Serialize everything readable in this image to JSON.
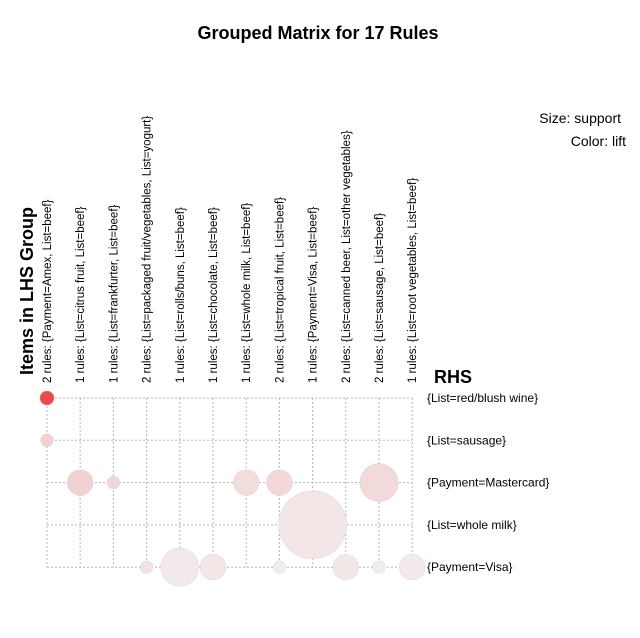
{
  "chart_data": {
    "type": "scatter",
    "title": "Grouped Matrix for 17 Rules",
    "legend": {
      "size_label": "Size: support",
      "color_label": "Color: lift"
    },
    "xlabel": "Items in LHS Group",
    "ylabel": "RHS",
    "lhs_groups": [
      "2 rules: {Payment=Amex, List=beef}",
      "1 rules: {List=citrus fruit, List=beef}",
      "1 rules: {List=frankfurter, List=beef}",
      "2 rules: {List=packaged fruit/vegetables, List=yogurt}",
      "1 rules: {List=rolls/buns, List=beef}",
      "1 rules: {List=chocolate, List=beef}",
      "1 rules: {List=whole milk, List=beef}",
      "2 rules: {List=tropical fruit, List=beef}",
      "1 rules: {Payment=Visa, List=beef}",
      "2 rules: {List=canned beer, List=other vegetables}",
      "2 rules: {List=sausage, List=beef}",
      "1 rules: {List=root vegetables, List=beef}"
    ],
    "rhs_items": [
      "{List=red/blush wine}",
      "{List=sausage}",
      "{Payment=Mastercard}",
      "{List=whole milk}",
      "{Payment=Visa}"
    ],
    "points": [
      {
        "lhs": 0,
        "rhs": 0,
        "support": 0.015,
        "lift": 1.0
      },
      {
        "lhs": 0,
        "rhs": 1,
        "support": 0.012,
        "lift": 0.22
      },
      {
        "lhs": 1,
        "rhs": 2,
        "support": 0.05,
        "lift": 0.22
      },
      {
        "lhs": 2,
        "rhs": 2,
        "support": 0.012,
        "lift": 0.2
      },
      {
        "lhs": 6,
        "rhs": 2,
        "support": 0.05,
        "lift": 0.15
      },
      {
        "lhs": 7,
        "rhs": 2,
        "support": 0.05,
        "lift": 0.18
      },
      {
        "lhs": 10,
        "rhs": 2,
        "support": 0.11,
        "lift": 0.17
      },
      {
        "lhs": 8,
        "rhs": 3,
        "support": 0.35,
        "lift": 0.1
      },
      {
        "lhs": 3,
        "rhs": 4,
        "support": 0.012,
        "lift": 0.12
      },
      {
        "lhs": 4,
        "rhs": 4,
        "support": 0.11,
        "lift": 0.08
      },
      {
        "lhs": 5,
        "rhs": 4,
        "support": 0.05,
        "lift": 0.1
      },
      {
        "lhs": 7,
        "rhs": 4,
        "support": 0.012,
        "lift": 0.06
      },
      {
        "lhs": 9,
        "rhs": 4,
        "support": 0.05,
        "lift": 0.09
      },
      {
        "lhs": 10,
        "rhs": 4,
        "support": 0.012,
        "lift": 0.06
      },
      {
        "lhs": 11,
        "rhs": 4,
        "support": 0.05,
        "lift": 0.08
      }
    ],
    "grid": true,
    "legend_placement": "top-right",
    "colors": {
      "low": "#f2eded",
      "high": "#ef4a4a",
      "grid": "#b5b5b5"
    }
  }
}
